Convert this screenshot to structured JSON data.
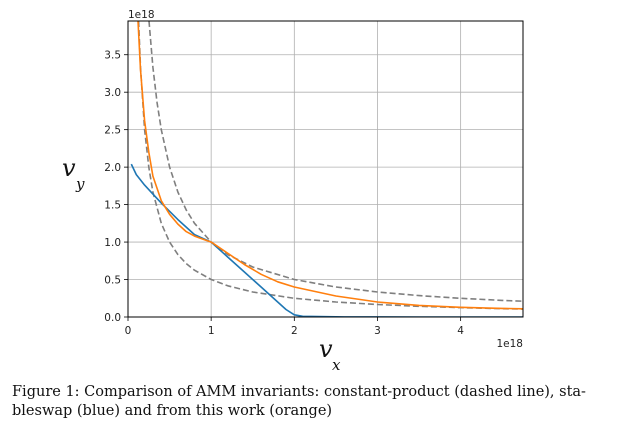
{
  "chart_data": {
    "type": "line",
    "xlabel": "v",
    "xlabel_sub": "x",
    "ylabel": "v",
    "ylabel_sub": "y",
    "x_offset_label": "1e18",
    "y_offset_label": "1e18",
    "xlim": [
      0,
      4.75
    ],
    "ylim": [
      0,
      3.95
    ],
    "xticks": [
      0,
      1,
      2,
      3,
      4
    ],
    "xtick_labels": [
      "0",
      "1",
      "2",
      "3",
      "4"
    ],
    "yticks": [
      0,
      0.5,
      1.0,
      1.5,
      2.0,
      2.5,
      3.0,
      3.5
    ],
    "ytick_labels": [
      "0.0",
      "0.5",
      "1.0",
      "1.5",
      "2.0",
      "2.5",
      "3.0",
      "3.5"
    ],
    "grid": true,
    "series": [
      {
        "color": "#7f7f7f",
        "style": "dashed",
        "x": [
          0.127,
          0.15,
          0.2,
          0.25,
          0.3,
          0.4,
          0.5,
          0.6,
          0.7,
          0.8,
          1.0,
          1.2,
          1.5,
          2.0,
          2.5,
          3.0,
          3.5,
          4.0,
          4.5,
          4.75
        ],
        "y": [
          3.95,
          3.333,
          2.5,
          2.0,
          1.667,
          1.25,
          1.0,
          0.833,
          0.714,
          0.625,
          0.5,
          0.417,
          0.333,
          0.25,
          0.2,
          0.167,
          0.143,
          0.125,
          0.111,
          0.105
        ]
      },
      {
        "color": "#7f7f7f",
        "style": "dashed",
        "x": [
          0.253,
          0.3,
          0.35,
          0.4,
          0.5,
          0.6,
          0.7,
          0.8,
          1.0,
          1.2,
          1.5,
          2.0,
          2.5,
          3.0,
          3.5,
          4.0,
          4.5,
          4.75
        ],
        "y": [
          3.95,
          3.333,
          2.857,
          2.5,
          2.0,
          1.667,
          1.429,
          1.25,
          1.0,
          0.833,
          0.667,
          0.5,
          0.4,
          0.333,
          0.286,
          0.25,
          0.222,
          0.211
        ]
      },
      {
        "color": "#1f77b4",
        "style": "solid",
        "x": [
          0.04,
          0.1,
          0.2,
          0.3,
          0.4,
          0.5,
          0.6,
          0.7,
          0.8,
          0.9,
          1.0,
          1.2,
          1.4,
          1.6,
          1.8,
          1.9,
          2.0,
          2.1,
          2.3,
          2.6,
          3.0,
          3.5,
          4.0,
          4.75
        ],
        "y": [
          2.04,
          1.9,
          1.76,
          1.64,
          1.52,
          1.41,
          1.3,
          1.2,
          1.1,
          1.05,
          1.0,
          0.8,
          0.6,
          0.4,
          0.2,
          0.1,
          0.03,
          0.01,
          0.005,
          0.002,
          0.001,
          0.0005,
          0.0003,
          0.0002
        ]
      },
      {
        "color": "#ff7f0e",
        "style": "solid",
        "x": [
          0.12,
          0.15,
          0.2,
          0.25,
          0.3,
          0.4,
          0.5,
          0.6,
          0.7,
          0.8,
          0.9,
          1.0,
          1.2,
          1.4,
          1.6,
          1.8,
          2.0,
          2.5,
          3.0,
          3.5,
          4.0,
          4.5,
          4.75
        ],
        "y": [
          3.95,
          3.3,
          2.62,
          2.2,
          1.88,
          1.55,
          1.37,
          1.24,
          1.14,
          1.08,
          1.04,
          1.0,
          0.85,
          0.7,
          0.57,
          0.47,
          0.4,
          0.28,
          0.2,
          0.155,
          0.13,
          0.115,
          0.11
        ]
      }
    ]
  },
  "caption": "Figure 1: Comparison of AMM invariants: constant-product (dashed line), stableswap (blue) and from this work (orange)",
  "caption_lines": [
    "Figure 1: Comparison of AMM invariants: constant-product (dashed line), sta-",
    "bleswap (blue) and from this work (orange)"
  ]
}
